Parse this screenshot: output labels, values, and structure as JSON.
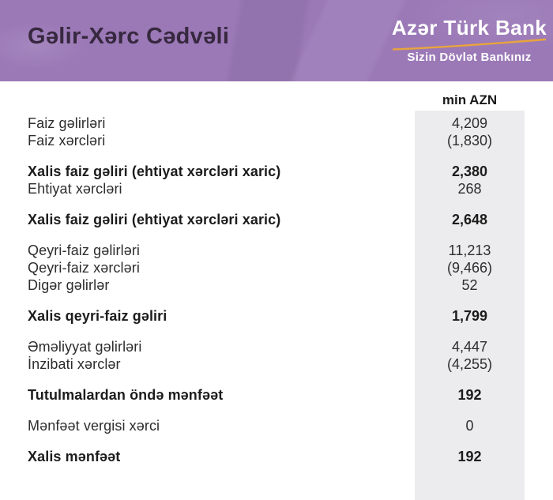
{
  "header": {
    "title": "Gəlir-Xərc Cədvəli",
    "logo": {
      "name": "Azər Türk Bank",
      "tagline": "Sizin Dövlət Bankınız"
    }
  },
  "table": {
    "unit_label": "min AZN",
    "sections": [
      {
        "rows": [
          {
            "label": "Faiz gəlirləri",
            "value": "4,209",
            "bold": false
          },
          {
            "label": "Faiz xərcləri",
            "value": "(1,830)",
            "bold": false
          }
        ]
      },
      {
        "rows": [
          {
            "label": "Xalis faiz gəliri (ehtiyat xərcləri xaric)",
            "value": "2,380",
            "bold": true
          },
          {
            "label": "Ehtiyat xərcləri",
            "value": "268",
            "bold": false
          }
        ]
      },
      {
        "rows": [
          {
            "label": "Xalis faiz gəliri (ehtiyat xərcləri xaric)",
            "value": "2,648",
            "bold": true
          }
        ]
      },
      {
        "rows": [
          {
            "label": "Qeyri-faiz gəlirləri",
            "value": "11,213",
            "bold": false
          },
          {
            "label": "Qeyri-faiz xərcləri",
            "value": "(9,466)",
            "bold": false
          },
          {
            "label": "Digər gəlirlər",
            "value": "52",
            "bold": false
          }
        ]
      },
      {
        "rows": [
          {
            "label": "Xalis qeyri-faiz gəliri",
            "value": "1,799",
            "bold": true
          }
        ]
      },
      {
        "rows": [
          {
            "label": "Əməliyyat gəlirləri",
            "value": "4,447",
            "bold": false
          },
          {
            "label": "İnzibati xərclər",
            "value": "(4,255)",
            "bold": false
          }
        ]
      },
      {
        "rows": [
          {
            "label": "Tutulmalardan öndə mənfəət",
            "value": "192",
            "bold": true
          }
        ]
      },
      {
        "rows": [
          {
            "label": "Mənfəət vergisi xərci",
            "value": "0",
            "bold": false
          }
        ]
      },
      {
        "rows": [
          {
            "label": "Xalis mənfəət",
            "value": "192",
            "bold": true
          }
        ]
      }
    ]
  },
  "colors": {
    "banner_purple": "#9b79b7",
    "title_dark": "#37283f",
    "accent_gold": "#e8a43c",
    "value_column_gray": "#ececee"
  }
}
